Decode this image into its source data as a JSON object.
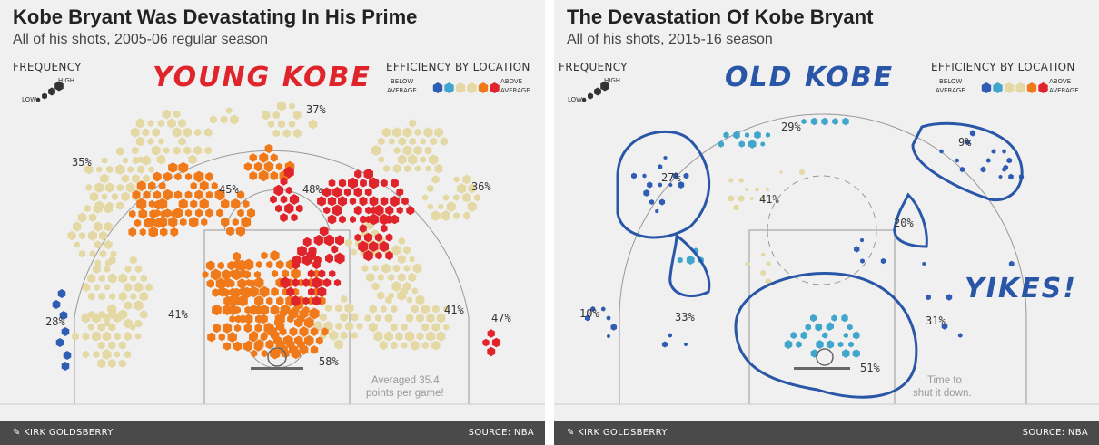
{
  "colors": {
    "low": "#e4d9a4",
    "mid": "#f07a1a",
    "high": "#e0242c",
    "below": "#2f5db3",
    "belowLight": "#41a6cc",
    "ink": "#2a56a8",
    "youngRed": "#e0242c"
  },
  "footer": {
    "author": "KIRK GOLDSBERRY",
    "source": "SOURCE: NBA"
  },
  "legend": {
    "frequency": "FREQUENCY",
    "high": "HIGH",
    "low": "LOW",
    "efficiency": "EFFICIENCY BY LOCATION",
    "below1": "BELOW",
    "below2": "AVERAGE",
    "above1": "ABOVE",
    "above2": "AVERAGE"
  },
  "chart_data": [
    {
      "type": "hexbin-shotchart",
      "title": "Kobe Bryant Was Devastating In His Prime",
      "subtitle": "All of his shots, 2005-06 regular season",
      "heading": "YOUNG KOBE",
      "note": [
        "Averaged 35.4",
        "points per game!"
      ],
      "zones": [
        {
          "zone": "top of the arc three",
          "pct": "37%"
        },
        {
          "zone": "left wing three",
          "pct": "35%"
        },
        {
          "zone": "right wing three",
          "pct": "36%"
        },
        {
          "zone": "left elbow midrange",
          "pct": "45%"
        },
        {
          "zone": "right elbow midrange",
          "pct": "48%"
        },
        {
          "zone": "left corner three",
          "pct": "28%"
        },
        {
          "zone": "left baseline midrange",
          "pct": "41%"
        },
        {
          "zone": "right baseline midrange",
          "pct": "41%"
        },
        {
          "zone": "right corner three",
          "pct": "47%"
        },
        {
          "zone": "restricted area",
          "pct": "58%"
        }
      ]
    },
    {
      "type": "hexbin-shotchart",
      "title": "The Devastation Of Kobe Bryant",
      "subtitle": "All of his shots, 2015-16 season",
      "heading": "OLD KOBE",
      "exclaim": "YIKES!",
      "note": [
        "Time to",
        "shut it down."
      ],
      "zones": [
        {
          "zone": "top of the arc three",
          "pct": "29%"
        },
        {
          "zone": "left wing three",
          "pct": "27%"
        },
        {
          "zone": "right wing three",
          "pct": "9%"
        },
        {
          "zone": "left elbow midrange",
          "pct": "41%"
        },
        {
          "zone": "right elbow midrange",
          "pct": "20%"
        },
        {
          "zone": "left corner three",
          "pct": "10%"
        },
        {
          "zone": "left baseline midrange",
          "pct": "33%"
        },
        {
          "zone": "right baseline midrange",
          "pct": "31%"
        },
        {
          "zone": "restricted area",
          "pct": "51%"
        }
      ]
    }
  ]
}
